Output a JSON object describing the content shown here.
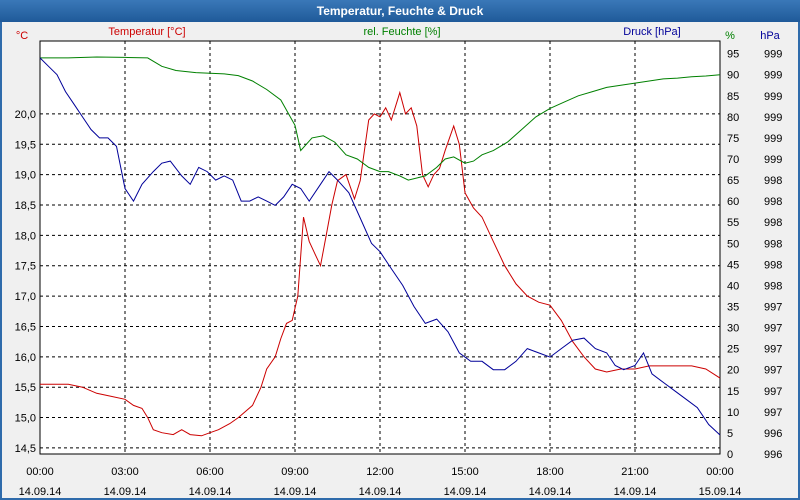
{
  "window": {
    "title": "Temperatur, Feuchte & Druck"
  },
  "colors": {
    "temperature": "#cc0000",
    "humidity": "#008000",
    "pressure": "#000099",
    "grid": "#000000",
    "plot_bg": "#ffffff",
    "window_bg": "#f0f0f0",
    "titlebar": "#2f6bab"
  },
  "chart_data": {
    "type": "line",
    "title": "Temperatur, Feuchte & Druck",
    "grid": true,
    "x_ticks": [
      {
        "time": "00:00",
        "date": "14.09.14"
      },
      {
        "time": "03:00",
        "date": "14.09.14"
      },
      {
        "time": "06:00",
        "date": "14.09.14"
      },
      {
        "time": "09:00",
        "date": "14.09.14"
      },
      {
        "time": "12:00",
        "date": "14.09.14"
      },
      {
        "time": "15:00",
        "date": "14.09.14"
      },
      {
        "time": "18:00",
        "date": "14.09.14"
      },
      {
        "time": "21:00",
        "date": "14.09.14"
      },
      {
        "time": "00:00",
        "date": "15.09.14"
      }
    ],
    "xlim_hours": [
      0,
      24
    ],
    "axes": {
      "temperature": {
        "unit_label": "°C",
        "legend": "Temperatur [°C]",
        "ylim": [
          14.4,
          21.2
        ],
        "ticks": [
          "14,5",
          "15,0",
          "15,5",
          "16,0",
          "16,5",
          "17,0",
          "17,5",
          "18,0",
          "18,5",
          "19,0",
          "19,5",
          "20,0"
        ]
      },
      "humidity": {
        "unit_label": "%",
        "legend": "rel. Feuchte [%]",
        "ylim": [
          0,
          98
        ],
        "ticks": [
          "0",
          "5",
          "10",
          "15",
          "20",
          "25",
          "30",
          "35",
          "40",
          "45",
          "50",
          "55",
          "60",
          "65",
          "70",
          "75",
          "80",
          "85",
          "90",
          "95"
        ]
      },
      "pressure": {
        "unit_label": "hPa",
        "legend": "Druck [hPa]",
        "ticks": [
          "996",
          "996",
          "997",
          "997",
          "997",
          "997",
          "997",
          "997",
          "998",
          "998",
          "998",
          "998",
          "998",
          "998",
          "999",
          "999",
          "999",
          "999",
          "999",
          "999"
        ]
      }
    },
    "series": [
      {
        "name": "Temperatur [°C]",
        "axis": "temperature",
        "color": "#cc0000",
        "points": [
          [
            0,
            15.55
          ],
          [
            0.5,
            15.55
          ],
          [
            1,
            15.55
          ],
          [
            1.5,
            15.5
          ],
          [
            2,
            15.4
          ],
          [
            2.5,
            15.35
          ],
          [
            3,
            15.3
          ],
          [
            3.3,
            15.2
          ],
          [
            3.6,
            15.15
          ],
          [
            3.8,
            15.0
          ],
          [
            4,
            14.8
          ],
          [
            4.3,
            14.75
          ],
          [
            4.7,
            14.72
          ],
          [
            5,
            14.8
          ],
          [
            5.3,
            14.72
          ],
          [
            5.7,
            14.7
          ],
          [
            6,
            14.75
          ],
          [
            6.3,
            14.8
          ],
          [
            6.7,
            14.9
          ],
          [
            7,
            15.0
          ],
          [
            7.5,
            15.2
          ],
          [
            7.8,
            15.5
          ],
          [
            8,
            15.8
          ],
          [
            8.3,
            16.0
          ],
          [
            8.5,
            16.3
          ],
          [
            8.7,
            16.55
          ],
          [
            8.9,
            16.6
          ],
          [
            9.1,
            17.0
          ],
          [
            9.3,
            18.3
          ],
          [
            9.5,
            17.9
          ],
          [
            9.7,
            17.7
          ],
          [
            9.9,
            17.5
          ],
          [
            10.1,
            18.0
          ],
          [
            10.3,
            18.5
          ],
          [
            10.5,
            18.9
          ],
          [
            10.8,
            19.0
          ],
          [
            11.1,
            18.6
          ],
          [
            11.3,
            18.9
          ],
          [
            11.6,
            19.9
          ],
          [
            11.8,
            20.0
          ],
          [
            12.0,
            19.95
          ],
          [
            12.2,
            20.1
          ],
          [
            12.4,
            19.9
          ],
          [
            12.6,
            20.2
          ],
          [
            12.7,
            20.35
          ],
          [
            12.9,
            20.0
          ],
          [
            13.1,
            20.1
          ],
          [
            13.3,
            19.8
          ],
          [
            13.5,
            19.0
          ],
          [
            13.7,
            18.8
          ],
          [
            13.9,
            19.0
          ],
          [
            14.1,
            19.1
          ],
          [
            14.3,
            19.4
          ],
          [
            14.6,
            19.8
          ],
          [
            14.8,
            19.5
          ],
          [
            15.0,
            18.7
          ],
          [
            15.3,
            18.45
          ],
          [
            15.6,
            18.3
          ],
          [
            16.0,
            17.9
          ],
          [
            16.4,
            17.5
          ],
          [
            16.8,
            17.2
          ],
          [
            17.2,
            17.0
          ],
          [
            17.6,
            16.9
          ],
          [
            18.0,
            16.85
          ],
          [
            18.4,
            16.6
          ],
          [
            18.8,
            16.25
          ],
          [
            19.2,
            16.0
          ],
          [
            19.6,
            15.8
          ],
          [
            20.0,
            15.75
          ],
          [
            20.5,
            15.8
          ],
          [
            21.0,
            15.8
          ],
          [
            21.5,
            15.85
          ],
          [
            22.0,
            15.85
          ],
          [
            22.5,
            15.85
          ],
          [
            23.0,
            15.85
          ],
          [
            23.5,
            15.8
          ],
          [
            24.0,
            15.65
          ]
        ]
      },
      {
        "name": "rel. Feuchte [%]",
        "axis": "humidity",
        "color": "#008000",
        "points": [
          [
            0,
            94
          ],
          [
            1,
            94
          ],
          [
            2,
            94.2
          ],
          [
            3,
            94.1
          ],
          [
            3.8,
            94
          ],
          [
            4.3,
            92
          ],
          [
            4.8,
            91
          ],
          [
            5.5,
            90.5
          ],
          [
            6.5,
            90.2
          ],
          [
            7,
            89.8
          ],
          [
            7.5,
            88.5
          ],
          [
            8,
            86.5
          ],
          [
            8.5,
            84
          ],
          [
            9,
            78
          ],
          [
            9.2,
            72
          ],
          [
            9.6,
            75
          ],
          [
            10,
            75.5
          ],
          [
            10.4,
            74
          ],
          [
            10.8,
            71
          ],
          [
            11.2,
            70
          ],
          [
            11.6,
            68
          ],
          [
            12.0,
            67
          ],
          [
            12.3,
            67
          ],
          [
            12.7,
            66
          ],
          [
            13.0,
            65
          ],
          [
            13.3,
            65.5
          ],
          [
            13.6,
            66
          ],
          [
            14.0,
            68
          ],
          [
            14.3,
            70
          ],
          [
            14.6,
            70.5
          ],
          [
            15.0,
            69
          ],
          [
            15.3,
            69.5
          ],
          [
            15.6,
            71
          ],
          [
            16.0,
            72
          ],
          [
            16.5,
            74
          ],
          [
            17,
            77
          ],
          [
            17.5,
            80
          ],
          [
            18,
            82
          ],
          [
            18.5,
            83.5
          ],
          [
            19,
            85
          ],
          [
            19.5,
            86
          ],
          [
            20,
            87
          ],
          [
            20.5,
            87.5
          ],
          [
            21,
            88
          ],
          [
            21.5,
            88.5
          ],
          [
            22,
            89
          ],
          [
            22.5,
            89.2
          ],
          [
            23,
            89.5
          ],
          [
            23.5,
            89.7
          ],
          [
            24,
            90
          ]
        ]
      },
      {
        "name": "Druck [hPa]",
        "axis": "pressure",
        "color": "#000099",
        "points": [
          [
            0,
            94
          ],
          [
            0.3,
            92
          ],
          [
            0.6,
            90
          ],
          [
            0.9,
            86
          ],
          [
            1.2,
            83
          ],
          [
            1.5,
            80
          ],
          [
            1.8,
            77
          ],
          [
            2.1,
            75
          ],
          [
            2.4,
            75
          ],
          [
            2.7,
            73
          ],
          [
            3.0,
            63
          ],
          [
            3.3,
            60
          ],
          [
            3.6,
            64
          ],
          [
            4.0,
            67
          ],
          [
            4.3,
            69
          ],
          [
            4.6,
            69.5
          ],
          [
            5.0,
            66
          ],
          [
            5.3,
            64
          ],
          [
            5.6,
            68
          ],
          [
            5.9,
            67
          ],
          [
            6.2,
            65
          ],
          [
            6.5,
            66
          ],
          [
            6.8,
            65
          ],
          [
            7.1,
            60
          ],
          [
            7.4,
            60
          ],
          [
            7.7,
            61
          ],
          [
            8.0,
            60
          ],
          [
            8.3,
            59
          ],
          [
            8.6,
            61
          ],
          [
            8.9,
            64
          ],
          [
            9.2,
            63
          ],
          [
            9.5,
            60
          ],
          [
            9.9,
            64
          ],
          [
            10.2,
            67
          ],
          [
            10.5,
            65
          ],
          [
            10.9,
            62
          ],
          [
            11.3,
            56
          ],
          [
            11.7,
            50
          ],
          [
            12.0,
            48
          ],
          [
            12.4,
            44
          ],
          [
            12.8,
            40
          ],
          [
            13.2,
            35
          ],
          [
            13.6,
            31
          ],
          [
            14.0,
            32
          ],
          [
            14.4,
            29
          ],
          [
            14.8,
            24
          ],
          [
            15.2,
            22
          ],
          [
            15.6,
            22
          ],
          [
            16.0,
            20
          ],
          [
            16.4,
            20
          ],
          [
            16.8,
            22
          ],
          [
            17.2,
            25
          ],
          [
            17.6,
            24
          ],
          [
            18.0,
            23
          ],
          [
            18.4,
            25
          ],
          [
            18.8,
            27
          ],
          [
            19.2,
            27.5
          ],
          [
            19.6,
            25
          ],
          [
            20.0,
            24
          ],
          [
            20.3,
            21
          ],
          [
            20.6,
            20
          ],
          [
            21.0,
            21
          ],
          [
            21.3,
            24
          ],
          [
            21.6,
            19
          ],
          [
            22.0,
            17
          ],
          [
            22.4,
            15
          ],
          [
            22.8,
            13
          ],
          [
            23.2,
            11
          ],
          [
            23.6,
            7
          ],
          [
            24.0,
            4.5
          ]
        ]
      }
    ]
  }
}
